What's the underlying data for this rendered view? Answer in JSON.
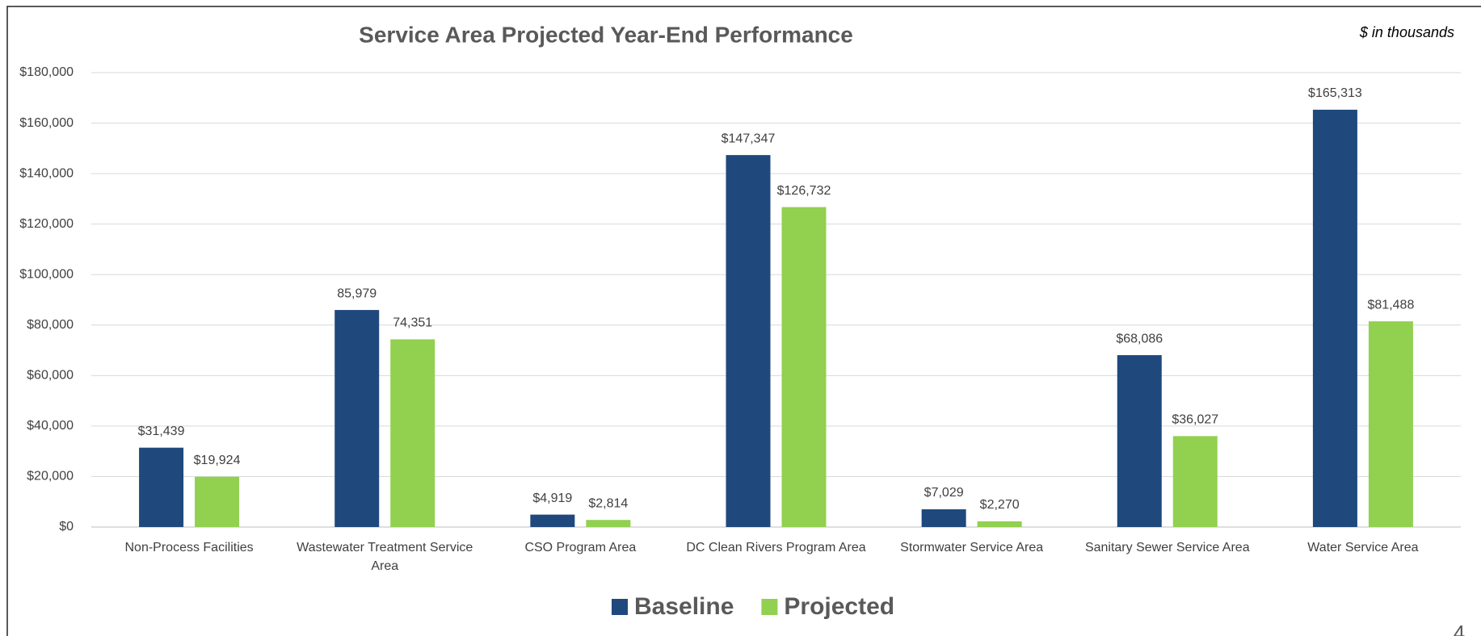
{
  "chart_data": {
    "type": "bar",
    "title": "Service Area Projected Year-End Performance",
    "subtitle": "$ in thousands",
    "page_number": "4",
    "categories": [
      "Non-Process Facilities",
      "Wastewater Treatment Service Area",
      "CSO Program Area",
      "DC Clean Rivers Program Area",
      "Stormwater Service Area",
      "Sanitary Sewer Service Area",
      "Water Service Area"
    ],
    "series": [
      {
        "name": "Baseline",
        "color": "#1f497d",
        "values": [
          31439,
          85979,
          4919,
          147347,
          7029,
          68086,
          165313
        ],
        "value_labels": [
          "$31,439",
          "85,979",
          "$4,919",
          "$147,347",
          "$7,029",
          "$68,086",
          "$165,313"
        ]
      },
      {
        "name": "Projected",
        "color": "#92d050",
        "values": [
          19924,
          74351,
          2814,
          126732,
          2270,
          36027,
          81488
        ],
        "value_labels": [
          "$19,924",
          "74,351",
          "$2,814",
          "$126,732",
          "$2,270",
          "$36,027",
          "$81,488"
        ]
      }
    ],
    "ylim": [
      0,
      180000
    ],
    "yticks": [
      {
        "value": 0,
        "label": "$0"
      },
      {
        "value": 20000,
        "label": "$20,000"
      },
      {
        "value": 40000,
        "label": "$40,000"
      },
      {
        "value": 60000,
        "label": "$60,000"
      },
      {
        "value": 80000,
        "label": "$80,000"
      },
      {
        "value": 100000,
        "label": "$100,000"
      },
      {
        "value": 120000,
        "label": "$120,000"
      },
      {
        "value": 140000,
        "label": "$140,000"
      },
      {
        "value": 160000,
        "label": "$160,000"
      },
      {
        "value": 180000,
        "label": "$180,000"
      }
    ],
    "grid": true,
    "legend": "bottom"
  }
}
